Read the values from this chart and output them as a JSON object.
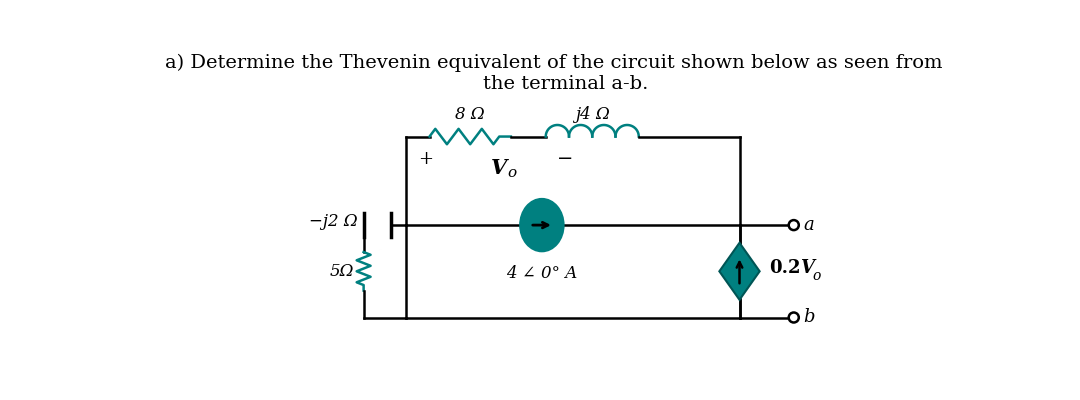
{
  "title_line1": "a) Determine the Thevenin equivalent of the circuit shown below as seen from",
  "title_line2": "    the terminal a-b.",
  "bg_color": "#ffffff",
  "circuit_color": "#000000",
  "resistor_color": "#008080",
  "inductor_color": "#008080",
  "current_source_color": "#008080",
  "dep_source_color": "#008080",
  "label_8ohm": "8 Ω",
  "label_j4ohm": "j4 Ω",
  "label_mj2ohm": "−j2 Ω",
  "label_5ohm": "5Ω",
  "label_Vo": "V",
  "label_Vo_sub": "o",
  "label_plus": "+",
  "label_minus": "−",
  "label_current": "4 ∠ 0° A",
  "label_dep_prefix": "0.2",
  "label_dep_V": "V",
  "label_dep_sub": "o",
  "label_a": "a",
  "label_b": "b",
  "font_size_title": 14,
  "font_size_labels": 13,
  "font_size_component": 12
}
